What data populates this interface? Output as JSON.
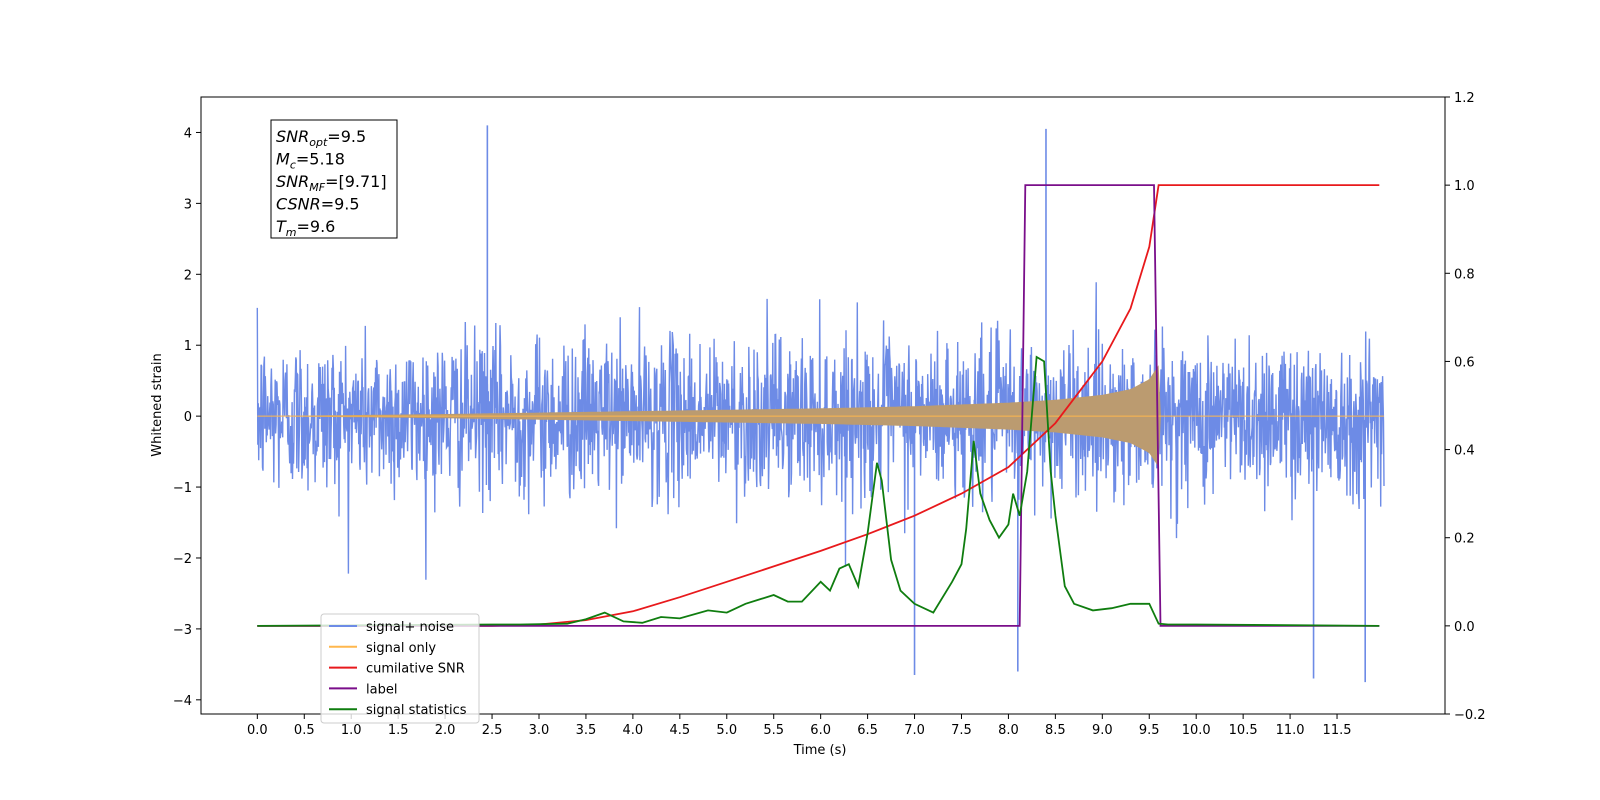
{
  "chart_data": {
    "type": "line",
    "xlabel": "Time (s)",
    "ylabel_left": "Whitened strain",
    "ylabel_right": "",
    "xlim": [
      -0.6,
      12.65
    ],
    "ylim_left": [
      -4.2,
      4.5
    ],
    "ylim_right": [
      -0.2,
      1.2
    ],
    "x_ticks": [
      "0.0",
      "0.5",
      "1.0",
      "1.5",
      "2.0",
      "2.5",
      "3.0",
      "3.5",
      "4.0",
      "4.5",
      "5.0",
      "5.5",
      "6.0",
      "6.5",
      "7.0",
      "7.5",
      "8.0",
      "8.5",
      "9.0",
      "9.5",
      "10.0",
      "10.5",
      "11.0",
      "11.5"
    ],
    "y_left_ticks": [
      "4",
      "3",
      "2",
      "1",
      "0",
      "−1",
      "−2",
      "−3",
      "−4"
    ],
    "y_right_ticks": [
      "1.2",
      "1.0",
      "0.8",
      "0.6",
      "0.4",
      "0.2",
      "0.0",
      "−0.2"
    ],
    "grid": false,
    "legend_location": "lower-left",
    "info_box": {
      "lines": [
        {
          "base": "SNR",
          "sub": "opt",
          "value": "=9.5"
        },
        {
          "base": "M",
          "sub": "c",
          "value": "=5.18"
        },
        {
          "base": "SNR",
          "sub": "MF",
          "value": "=[9.71]"
        },
        {
          "base": "CSNR",
          "sub": "",
          "value": "=9.5"
        },
        {
          "base": "T",
          "sub": "m",
          "value": "=9.6"
        }
      ]
    },
    "series": [
      {
        "name": "signal+ noise",
        "axis": "left",
        "color": "#6d8be6",
        "description": "noisy whitened strain, approx amplitude band ±1.6 with spikes to ±4",
        "x_range": [
          0.0,
          12.0
        ],
        "band": 1.6,
        "peak_spikes": [
          [
            2.45,
            4.1
          ],
          [
            8.4,
            4.05
          ],
          [
            11.25,
            -3.7
          ],
          [
            11.8,
            -3.75
          ],
          [
            7.0,
            -3.65
          ],
          [
            8.1,
            -3.6
          ]
        ]
      },
      {
        "name": "signal only",
        "axis": "left",
        "color": "#ffb74d",
        "description": "chirp envelope, amplitude grows to ~0.7 at merger then drops",
        "envelope_x": [
          0.0,
          2.0,
          4.0,
          6.0,
          7.0,
          8.0,
          8.5,
          9.0,
          9.3,
          9.5,
          9.6,
          9.62,
          12.0
        ],
        "envelope_y": [
          0.0,
          0.03,
          0.07,
          0.11,
          0.14,
          0.19,
          0.23,
          0.3,
          0.38,
          0.52,
          0.72,
          0.0,
          0.0
        ]
      },
      {
        "name": "cumilative SNR",
        "axis": "right",
        "color": "#e8191c",
        "x": [
          0.0,
          2.5,
          3.0,
          3.5,
          4.0,
          4.5,
          5.0,
          5.5,
          6.0,
          6.5,
          7.0,
          7.5,
          8.0,
          8.5,
          9.0,
          9.3,
          9.5,
          9.6,
          9.62,
          11.95
        ],
        "y": [
          0.0,
          0.0,
          0.003,
          0.013,
          0.033,
          0.065,
          0.1,
          0.135,
          0.17,
          0.208,
          0.25,
          0.3,
          0.36,
          0.46,
          0.6,
          0.72,
          0.86,
          1.0,
          1.0,
          1.0
        ]
      },
      {
        "name": "label",
        "axis": "right",
        "color": "#7a0e8a",
        "x": [
          0.0,
          8.12,
          8.18,
          9.55,
          9.62,
          11.95
        ],
        "y": [
          0.0,
          0.0,
          1.0,
          1.0,
          0.0,
          0.0
        ]
      },
      {
        "name": "signal statistics",
        "axis": "right",
        "color": "#0f7d0f",
        "x": [
          0.0,
          2.5,
          2.8,
          3.3,
          3.5,
          3.7,
          3.9,
          4.1,
          4.3,
          4.5,
          4.8,
          5.0,
          5.2,
          5.35,
          5.5,
          5.65,
          5.8,
          6.0,
          6.1,
          6.2,
          6.3,
          6.4,
          6.5,
          6.6,
          6.65,
          6.75,
          6.85,
          7.0,
          7.2,
          7.4,
          7.5,
          7.55,
          7.63,
          7.7,
          7.8,
          7.9,
          8.0,
          8.05,
          8.12,
          8.2,
          8.3,
          8.38,
          8.45,
          8.5,
          8.6,
          8.7,
          8.9,
          9.1,
          9.3,
          9.5,
          9.6,
          9.7,
          10.0,
          11.95
        ],
        "y": [
          0.0,
          0.003,
          0.003,
          0.005,
          0.015,
          0.03,
          0.01,
          0.007,
          0.02,
          0.017,
          0.035,
          0.03,
          0.05,
          0.06,
          0.07,
          0.055,
          0.055,
          0.1,
          0.08,
          0.13,
          0.14,
          0.09,
          0.21,
          0.37,
          0.33,
          0.15,
          0.08,
          0.05,
          0.03,
          0.1,
          0.14,
          0.22,
          0.42,
          0.3,
          0.24,
          0.2,
          0.23,
          0.3,
          0.25,
          0.35,
          0.61,
          0.6,
          0.35,
          0.25,
          0.09,
          0.05,
          0.035,
          0.04,
          0.05,
          0.05,
          0.005,
          0.003,
          0.003,
          0.0
        ]
      }
    ]
  }
}
